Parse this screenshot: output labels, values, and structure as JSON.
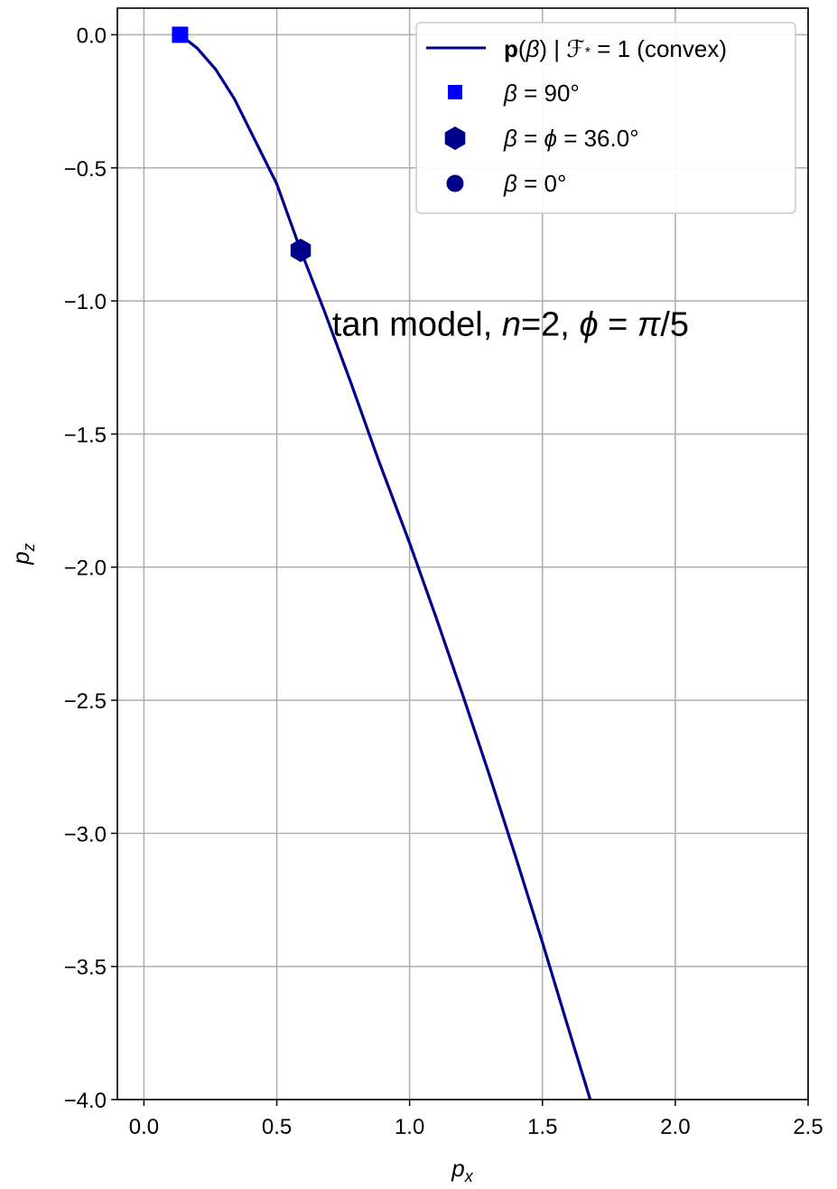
{
  "chart_data": {
    "type": "line",
    "xlabel": "p",
    "xlabel_sub": "x",
    "ylabel": "p",
    "ylabel_sub": "z",
    "xlim": [
      -0.1,
      2.5
    ],
    "ylim": [
      -4.0,
      0.1
    ],
    "xticks": [
      0.0,
      0.5,
      1.0,
      1.5,
      2.0,
      2.5
    ],
    "xtick_labels": [
      "0.0",
      "0.5",
      "1.0",
      "1.5",
      "2.0",
      "2.5"
    ],
    "yticks": [
      0.0,
      -0.5,
      -1.0,
      -1.5,
      -2.0,
      -2.5,
      -3.0,
      -3.5,
      -4.0
    ],
    "ytick_labels": [
      "0.0",
      "−0.5",
      "−1.0",
      "−1.5",
      "−2.0",
      "−2.5",
      "−3.0",
      "−3.5",
      "−4.0"
    ],
    "grid": true,
    "legend_position": "top-right",
    "annotation": {
      "text_parts": [
        "tan model, ",
        "n",
        "=2, ",
        "ϕ",
        " = ",
        "π",
        "/5"
      ],
      "x": 1.38,
      "y": -1.13
    },
    "series": [
      {
        "name": "p(β) | 𝓕* = 1 (convex)",
        "legend_parts": [
          "p",
          "(",
          "β",
          ") | ",
          "ℱ",
          "*",
          " = 1 (convex)"
        ],
        "color": "#00008b",
        "points": [
          [
            0.136,
            0.0
          ],
          [
            0.2,
            -0.05
          ],
          [
            0.27,
            -0.13
          ],
          [
            0.34,
            -0.24
          ],
          [
            0.42,
            -0.4
          ],
          [
            0.5,
            -0.56
          ],
          [
            0.59,
            -0.81
          ],
          [
            0.68,
            -1.04
          ],
          [
            0.78,
            -1.31
          ],
          [
            0.88,
            -1.59
          ],
          [
            1.0,
            -1.91
          ],
          [
            1.1,
            -2.19
          ],
          [
            1.2,
            -2.48
          ],
          [
            1.3,
            -2.78
          ],
          [
            1.4,
            -3.09
          ],
          [
            1.5,
            -3.41
          ],
          [
            1.6,
            -3.74
          ],
          [
            1.68,
            -4.0
          ]
        ]
      }
    ],
    "markers": [
      {
        "name": "β = 90°",
        "legend_parts": [
          "β",
          " = 90°"
        ],
        "shape": "square",
        "color": "#0000ff",
        "x": 0.136,
        "y": 0.0
      },
      {
        "name": "β = ϕ = 36.0°",
        "legend_parts": [
          "β",
          " = ",
          "ϕ",
          " = 36.0°"
        ],
        "shape": "hexagon",
        "color": "#00008b",
        "x": 0.59,
        "y": -0.81
      },
      {
        "name": "β = 0°",
        "legend_parts": [
          "β",
          " = 0°"
        ],
        "shape": "circle",
        "color": "#00008b",
        "x": null,
        "y": null
      }
    ]
  }
}
